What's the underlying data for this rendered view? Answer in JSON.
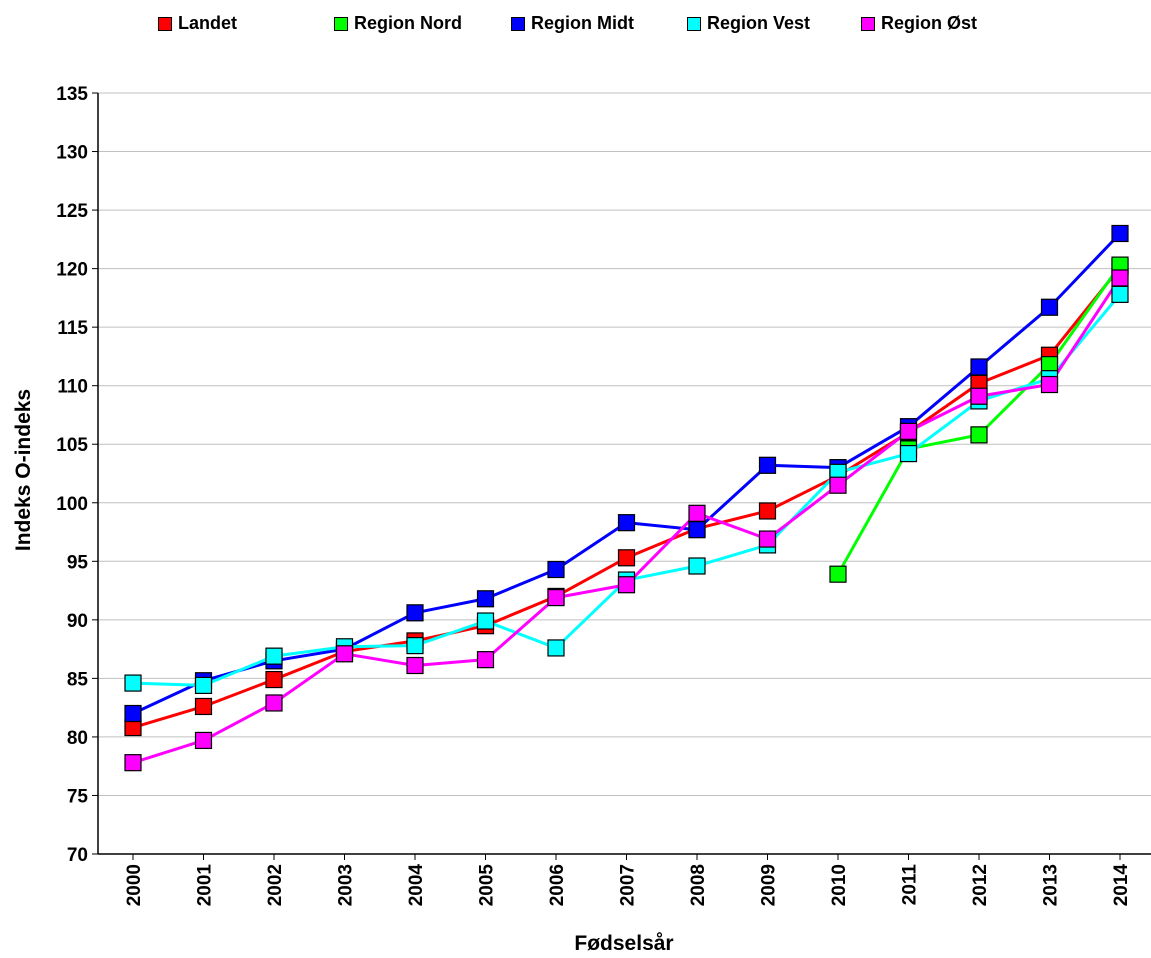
{
  "chart_data": {
    "type": "line",
    "xlabel": "Fødselsår",
    "ylabel": "Indeks O-indeks",
    "x": [
      "2000",
      "2001",
      "2002",
      "2003",
      "2004",
      "2005",
      "2006",
      "2007",
      "2008",
      "2009",
      "2010",
      "2011",
      "2012",
      "2013",
      "2014"
    ],
    "ylim": [
      70,
      135
    ],
    "yticks": [
      "70",
      "75",
      "80",
      "85",
      "90",
      "95",
      "100",
      "105",
      "110",
      "115",
      "120",
      "125",
      "130",
      "135"
    ],
    "grid": true,
    "legend_position": "top",
    "series": [
      {
        "name": "Landet",
        "color": "#ff0000",
        "values": [
          80.8,
          82.6,
          84.9,
          87.3,
          88.2,
          89.5,
          92.0,
          95.3,
          97.8,
          99.3,
          102.3,
          106.0,
          110.2,
          112.6,
          120.1
        ]
      },
      {
        "name": "Region Nord",
        "color": "#00ff00",
        "values": [
          null,
          null,
          null,
          null,
          null,
          null,
          null,
          null,
          null,
          null,
          93.9,
          104.6,
          105.8,
          111.8,
          120.3
        ]
      },
      {
        "name": "Region Midt",
        "color": "#0000ff",
        "values": [
          82.0,
          84.8,
          86.5,
          87.5,
          90.6,
          91.8,
          94.3,
          98.3,
          97.7,
          103.2,
          103.0,
          106.5,
          111.6,
          116.7,
          123.0
        ]
      },
      {
        "name": "Region Vest",
        "color": "#00ffff",
        "values": [
          84.6,
          84.4,
          86.9,
          87.7,
          87.8,
          89.9,
          87.6,
          93.4,
          94.6,
          96.4,
          102.6,
          104.2,
          108.7,
          110.6,
          117.8
        ]
      },
      {
        "name": "Region Øst",
        "color": "#ff00ff",
        "values": [
          77.8,
          79.7,
          82.9,
          87.1,
          86.1,
          86.6,
          91.9,
          93.0,
          99.1,
          96.9,
          101.5,
          106.1,
          109.1,
          110.1,
          119.2
        ]
      }
    ]
  }
}
